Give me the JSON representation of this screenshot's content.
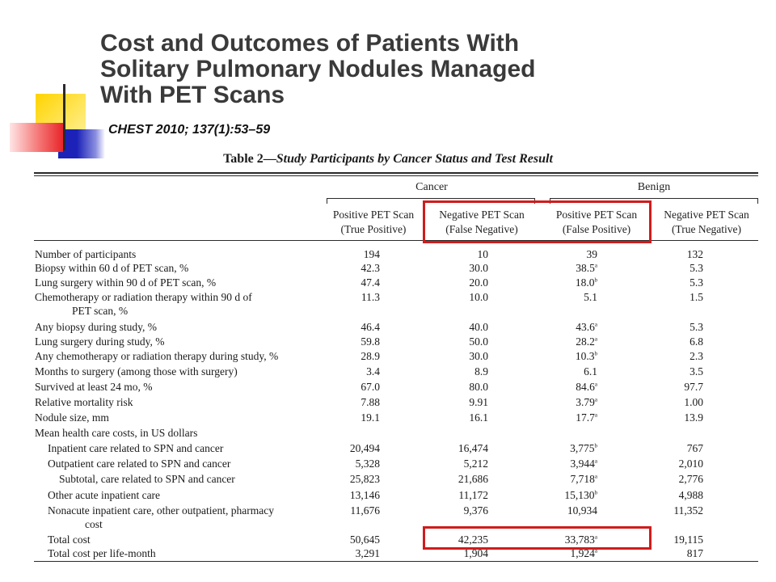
{
  "slide": {
    "title_lines": [
      "Cost and Outcomes of Patients With",
      "Solitary Pulmonary Nodules Managed",
      "With PET Scans"
    ],
    "citation": "CHEST 2010; 137(1):53–59",
    "accent_colors": {
      "yellow": "#ffd700",
      "red": "#e8262a",
      "blue": "#1c22b8",
      "dark": "#2a2a2a"
    }
  },
  "table": {
    "caption_prefix": "Table 2—",
    "caption_title": "Study Participants by Cancer Status and Test Result",
    "groups": [
      "Cancer",
      "Benign"
    ],
    "columns": [
      {
        "line1": "Positive PET Scan",
        "line2": "(True Positive)"
      },
      {
        "line1": "Negative PET Scan",
        "line2": "(False Negative)"
      },
      {
        "line1": "Positive PET Scan",
        "line2": "(False Positive)"
      },
      {
        "line1": "Negative PET Scan",
        "line2": "(True Negative)"
      }
    ],
    "rows": [
      {
        "label": "Number of participants",
        "values": [
          "194",
          "10",
          "39",
          "132"
        ],
        "sup": ""
      },
      {
        "label": "Biopsy within 60 d of PET scan, %",
        "values": [
          "42.3",
          "30.0",
          "38.5",
          "5.3"
        ],
        "sup": "a"
      },
      {
        "label": "Lung surgery within 90 d of PET scan, %",
        "values": [
          "47.4",
          "20.0",
          "18.0",
          "5.3"
        ],
        "sup": "b"
      },
      {
        "label": "Chemotherapy or radiation therapy within 90 d of",
        "label_cont": "PET scan, %",
        "values": [
          "11.3",
          "10.0",
          "5.1",
          "1.5"
        ],
        "sup": ""
      },
      {
        "label": "Any biopsy during study, %",
        "values": [
          "46.4",
          "40.0",
          "43.6",
          "5.3"
        ],
        "sup": "a"
      },
      {
        "label": "Lung surgery during study, %",
        "values": [
          "59.8",
          "50.0",
          "28.2",
          "6.8"
        ],
        "sup": "a"
      },
      {
        "label": "Any chemotherapy or radiation therapy during study, %",
        "values": [
          "28.9",
          "30.0",
          "10.3",
          "2.3"
        ],
        "sup": "b"
      },
      {
        "label": "Months to surgery (among those with surgery)",
        "values": [
          "3.4",
          "8.9",
          "6.1",
          "3.5"
        ],
        "sup": ""
      },
      {
        "label": "Survived at least 24 mo, %",
        "values": [
          "67.0",
          "80.0",
          "84.6",
          "97.7"
        ],
        "sup": "a"
      },
      {
        "label": "Relative mortality risk",
        "values": [
          "7.88",
          "9.91",
          "3.79",
          "1.00"
        ],
        "sup": "a"
      },
      {
        "label": "Nodule size, mm",
        "values": [
          "19.1",
          "16.1",
          "17.7",
          "13.9"
        ],
        "sup": "a"
      },
      {
        "label": "Mean health care costs, in US dollars",
        "values": [
          "",
          "",
          "",
          ""
        ],
        "sup": ""
      },
      {
        "label": "Inpatient care related to SPN and cancer",
        "values": [
          "20,494",
          "16,474",
          "3,775",
          "767"
        ],
        "sup": "b",
        "indent": 1
      },
      {
        "label": "Outpatient care related to SPN and cancer",
        "values": [
          "5,328",
          "5,212",
          "3,944",
          "2,010"
        ],
        "sup": "a",
        "indent": 1
      },
      {
        "label": "Subtotal, care related to SPN and cancer",
        "values": [
          "25,823",
          "21,686",
          "7,718",
          "2,776"
        ],
        "sup": "a",
        "indent": 2
      },
      {
        "label": "Other acute inpatient care",
        "values": [
          "13,146",
          "11,172",
          "15,130",
          "4,988"
        ],
        "sup": "b",
        "indent": 1
      },
      {
        "label": "Nonacute inpatient care, other outpatient, pharmacy",
        "label_cont": "cost",
        "values": [
          "11,676",
          "9,376",
          "10,934",
          "11,352"
        ],
        "sup": "",
        "indent": 1
      },
      {
        "label": "Total cost",
        "values": [
          "50,645",
          "42,235",
          "33,783",
          "19,115"
        ],
        "sup": "a",
        "indent": 1
      },
      {
        "label": "Total cost per life-month",
        "values": [
          "3,291",
          "1,904",
          "1,924",
          "817"
        ],
        "sup": "a",
        "indent": 1
      }
    ]
  }
}
